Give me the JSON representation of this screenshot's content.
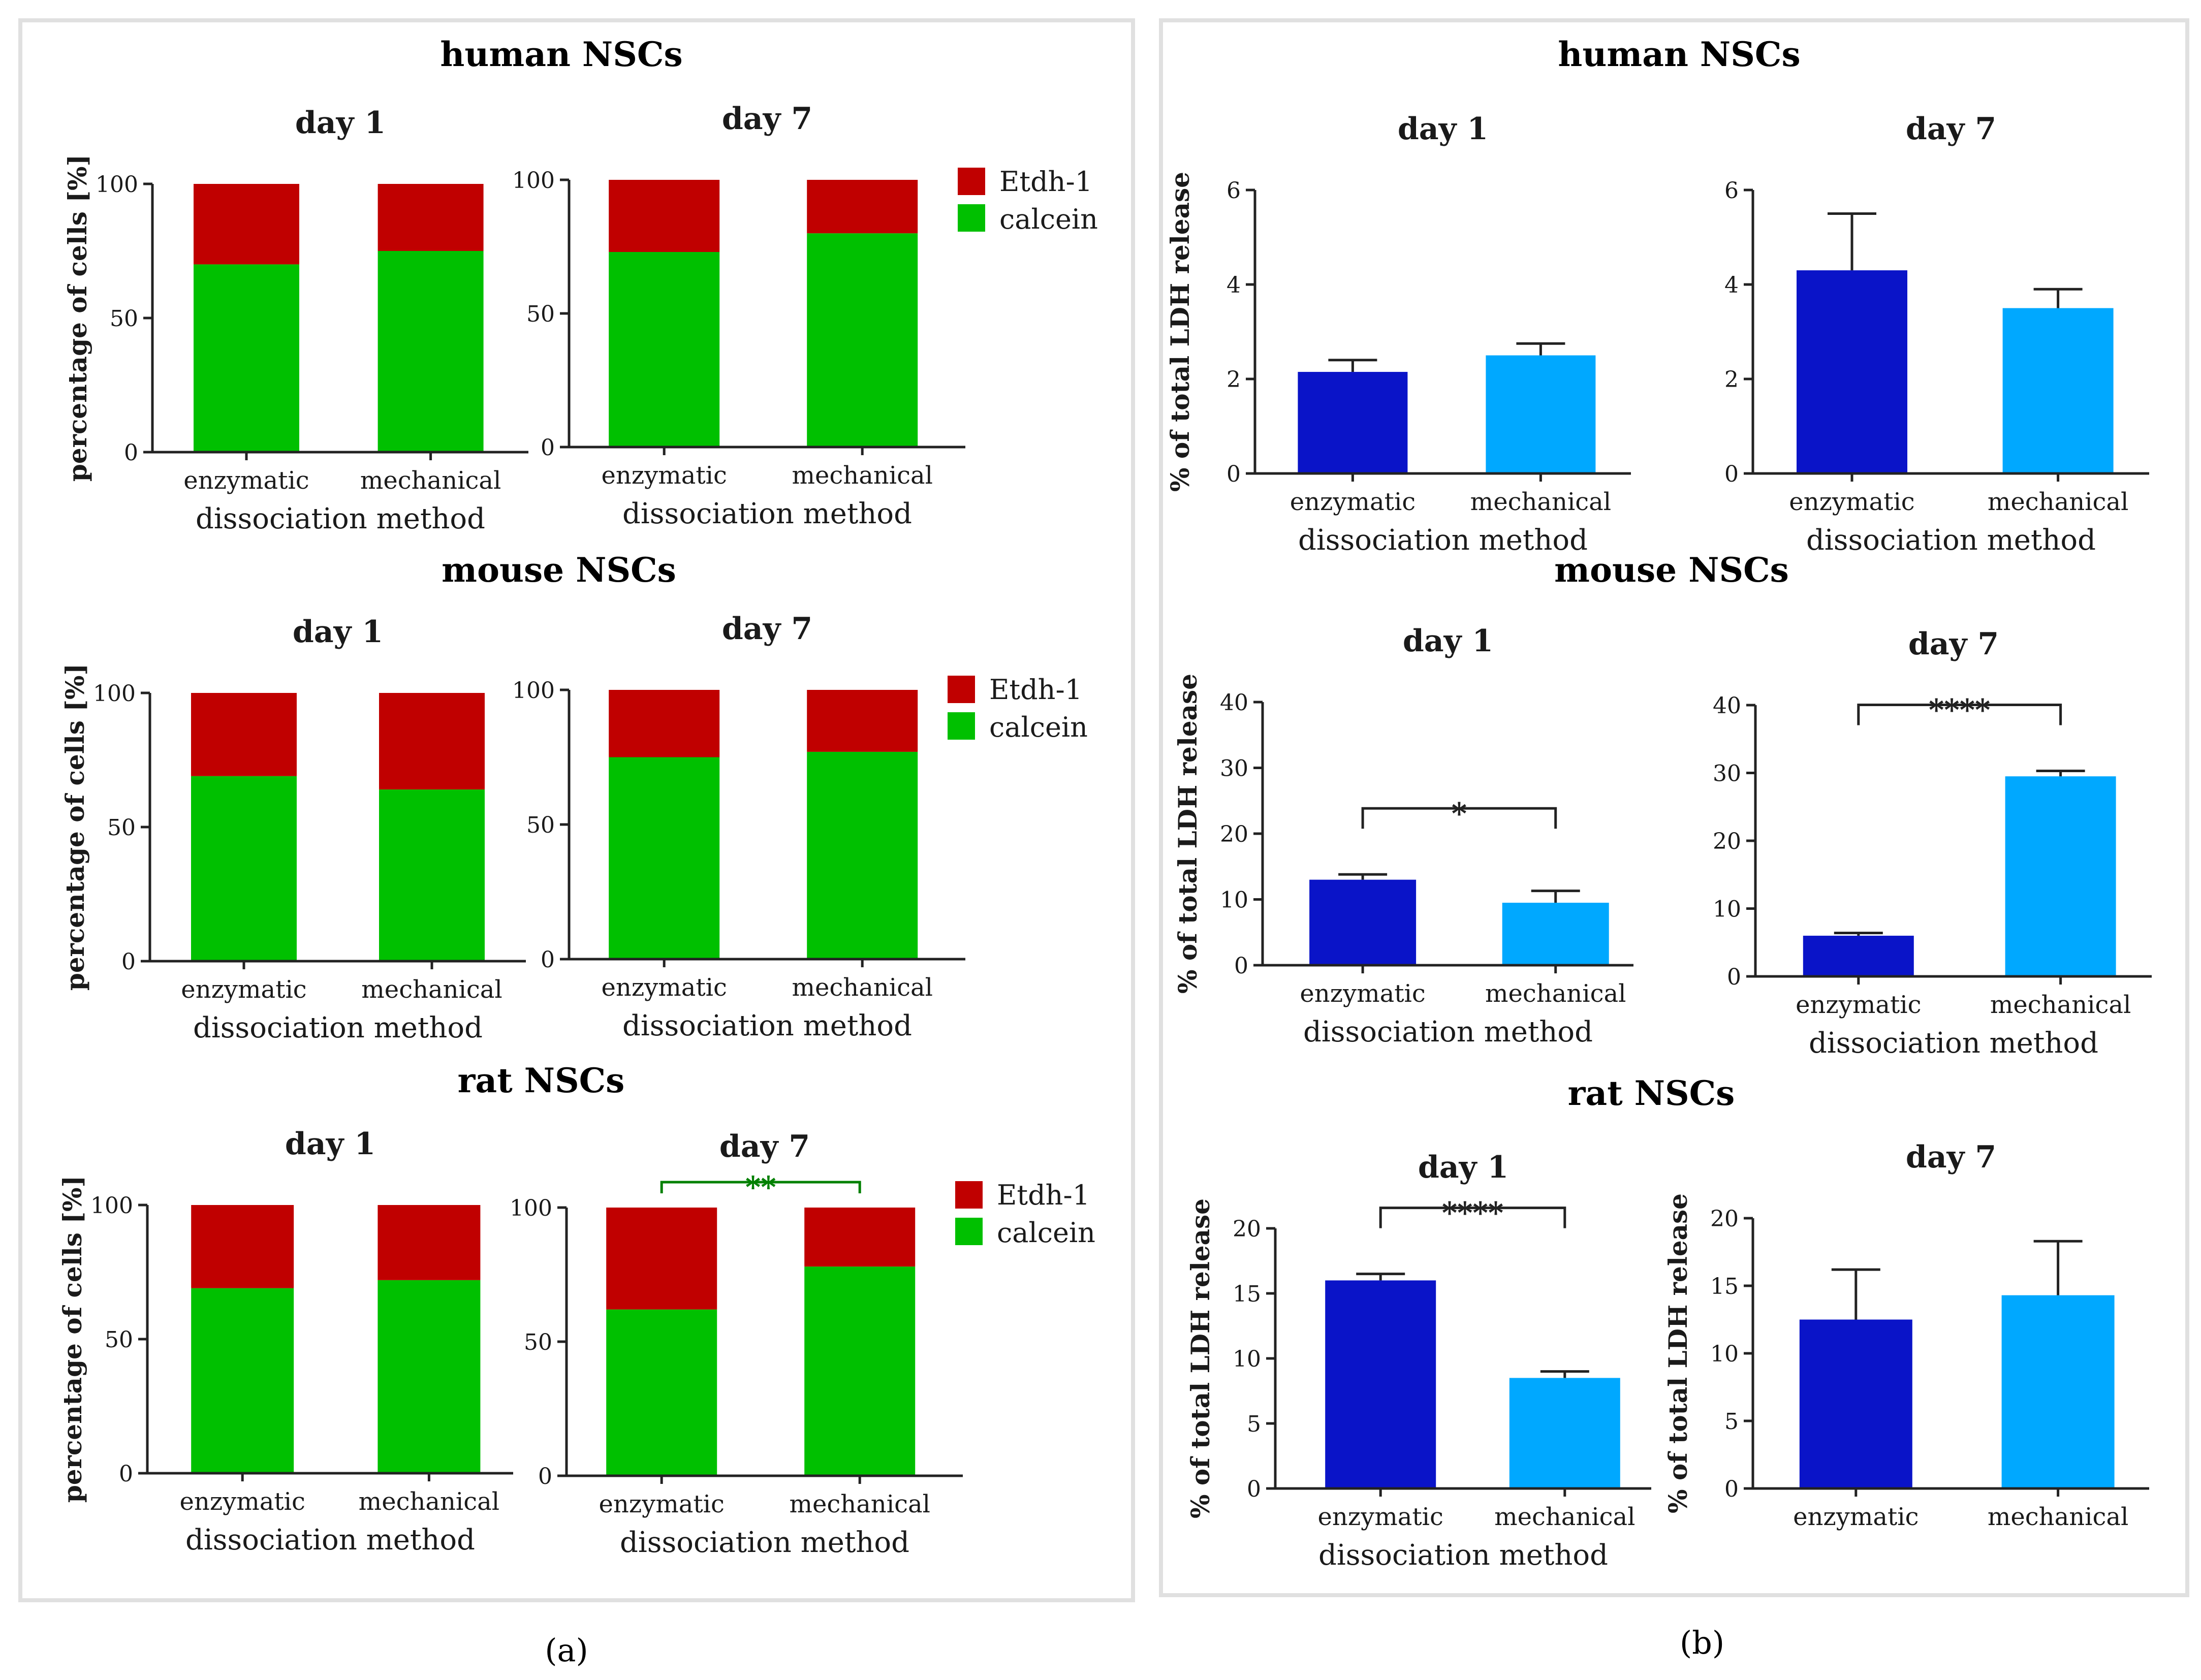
{
  "colors": {
    "etdh": "#c00000",
    "calcein": "#00c000",
    "enzymatic_bar": "#0a14c8",
    "mechanical_bar": "#00a8ff",
    "panel_border": "#e0e0e0",
    "sig_green": "#008000"
  },
  "captions": {
    "a": "(a)",
    "b": "(b)"
  },
  "species_titles": {
    "a": [
      "human NSCs",
      "mouse NSCs",
      "rat NSCs"
    ],
    "b": [
      "human NSCs",
      "mouse NSCs",
      "rat NSCs"
    ]
  },
  "legend": {
    "etdh": "Etdh-1",
    "calcein": "calcein"
  },
  "chart_data": [
    {
      "id": "a-human-d1",
      "panel": "a",
      "species": "human NSCs",
      "type": "stacked-bar",
      "title": "day 1",
      "xlabel": "dissociation method",
      "ylabel": "percentage of cells [%]",
      "categories": [
        "enzymatic",
        "mechanical"
      ],
      "series": [
        {
          "name": "calcein",
          "values": [
            70,
            75
          ]
        },
        {
          "name": "Etdh-1",
          "values": [
            30,
            25
          ]
        }
      ],
      "ylim": [
        0,
        100
      ],
      "yticks": [
        0,
        50,
        100
      ]
    },
    {
      "id": "a-human-d7",
      "panel": "a",
      "species": "human NSCs",
      "type": "stacked-bar",
      "title": "day 7",
      "xlabel": "dissociation method",
      "ylabel": "",
      "categories": [
        "enzymatic",
        "mechanical"
      ],
      "series": [
        {
          "name": "calcein",
          "values": [
            73,
            80
          ]
        },
        {
          "name": "Etdh-1",
          "values": [
            27,
            20
          ]
        }
      ],
      "ylim": [
        0,
        100
      ],
      "yticks": [
        0,
        50,
        100
      ],
      "legend": true
    },
    {
      "id": "a-mouse-d1",
      "panel": "a",
      "species": "mouse NSCs",
      "type": "stacked-bar",
      "title": "day 1",
      "xlabel": "dissociation method",
      "ylabel": "percentage of cells [%]",
      "categories": [
        "enzymatic",
        "mechanical"
      ],
      "series": [
        {
          "name": "calcein",
          "values": [
            69,
            64
          ]
        },
        {
          "name": "Etdh-1",
          "values": [
            31,
            36
          ]
        }
      ],
      "ylim": [
        0,
        100
      ],
      "yticks": [
        0,
        50,
        100
      ]
    },
    {
      "id": "a-mouse-d7",
      "panel": "a",
      "species": "mouse NSCs",
      "type": "stacked-bar",
      "title": "day 7",
      "xlabel": "dissociation method",
      "ylabel": "",
      "categories": [
        "enzymatic",
        "mechanical"
      ],
      "series": [
        {
          "name": "calcein",
          "values": [
            75,
            77
          ]
        },
        {
          "name": "Etdh-1",
          "values": [
            25,
            23
          ]
        }
      ],
      "ylim": [
        0,
        100
      ],
      "yticks": [
        0,
        50,
        100
      ],
      "legend": true
    },
    {
      "id": "a-rat-d1",
      "panel": "a",
      "species": "rat NSCs",
      "type": "stacked-bar",
      "title": "day 1",
      "xlabel": "dissociation method",
      "ylabel": "percentage of cells [%]",
      "categories": [
        "enzymatic",
        "mechanical"
      ],
      "series": [
        {
          "name": "calcein",
          "values": [
            69,
            72
          ]
        },
        {
          "name": "Etdh-1",
          "values": [
            31,
            28
          ]
        }
      ],
      "ylim": [
        0,
        100
      ],
      "yticks": [
        0,
        50,
        100
      ]
    },
    {
      "id": "a-rat-d7",
      "panel": "a",
      "species": "rat NSCs",
      "type": "stacked-bar",
      "title": "day 7",
      "xlabel": "dissociation method",
      "ylabel": "",
      "categories": [
        "enzymatic",
        "mechanical"
      ],
      "series": [
        {
          "name": "calcein",
          "values": [
            62,
            78
          ]
        },
        {
          "name": "Etdh-1",
          "values": [
            38,
            22
          ]
        }
      ],
      "ylim": [
        0,
        100
      ],
      "yticks": [
        0,
        50,
        100
      ],
      "legend": true,
      "significance": {
        "label": "**",
        "between": [
          0,
          1
        ]
      }
    },
    {
      "id": "b-human-d1",
      "panel": "b",
      "species": "human NSCs",
      "type": "bar",
      "title": "day 1",
      "xlabel": "dissociation method",
      "ylabel": "% of total LDH release",
      "categories": [
        "enzymatic",
        "mechanical"
      ],
      "values": [
        2.15,
        2.5
      ],
      "errors": [
        0.25,
        0.25
      ],
      "ylim": [
        0,
        6
      ],
      "yticks": [
        0,
        2,
        4,
        6
      ]
    },
    {
      "id": "b-human-d7",
      "panel": "b",
      "species": "human NSCs",
      "type": "bar",
      "title": "day 7",
      "xlabel": "dissociation method",
      "ylabel": "",
      "categories": [
        "enzymatic",
        "mechanical"
      ],
      "values": [
        4.3,
        3.5
      ],
      "errors": [
        1.2,
        0.4
      ],
      "ylim": [
        0,
        6
      ],
      "yticks": [
        0,
        2,
        4,
        6
      ]
    },
    {
      "id": "b-mouse-d1",
      "panel": "b",
      "species": "mouse NSCs",
      "type": "bar",
      "title": "day 1",
      "xlabel": "dissociation method",
      "ylabel": "% of total LDH release",
      "categories": [
        "enzymatic",
        "mechanical"
      ],
      "values": [
        13,
        9.5
      ],
      "errors": [
        0.8,
        1.8
      ],
      "ylim": [
        0,
        40
      ],
      "yticks": [
        0,
        10,
        20,
        30,
        40
      ],
      "significance": {
        "label": "*",
        "between": [
          0,
          1
        ]
      }
    },
    {
      "id": "b-mouse-d7",
      "panel": "b",
      "species": "mouse NSCs",
      "type": "bar",
      "title": "day 7",
      "xlabel": "dissociation method",
      "ylabel": "",
      "categories": [
        "enzymatic",
        "mechanical"
      ],
      "values": [
        6,
        29.5
      ],
      "errors": [
        0.4,
        0.8
      ],
      "ylim": [
        0,
        40
      ],
      "yticks": [
        0,
        10,
        20,
        30,
        40
      ],
      "significance": {
        "label": "****",
        "between": [
          0,
          1
        ]
      }
    },
    {
      "id": "b-rat-d1",
      "panel": "b",
      "species": "rat NSCs",
      "type": "bar",
      "title": "day 1",
      "xlabel": "dissociation method",
      "ylabel": "% of total LDH release",
      "categories": [
        "enzymatic",
        "mechanical"
      ],
      "values": [
        16,
        8.5
      ],
      "errors": [
        0.5,
        0.5
      ],
      "ylim": [
        0,
        20
      ],
      "yticks": [
        0,
        5,
        10,
        15,
        20
      ],
      "significance": {
        "label": "****",
        "between": [
          0,
          1
        ]
      }
    },
    {
      "id": "b-rat-d7",
      "panel": "b",
      "species": "rat NSCs",
      "type": "bar",
      "title": "day 7",
      "xlabel": "",
      "ylabel": "% of total LDH release",
      "categories": [
        "enzymatic",
        "mechanical"
      ],
      "values": [
        12.5,
        14.3
      ],
      "errors": [
        3.7,
        4
      ],
      "ylim": [
        0,
        20
      ],
      "yticks": [
        0,
        5,
        10,
        15,
        20
      ]
    }
  ]
}
